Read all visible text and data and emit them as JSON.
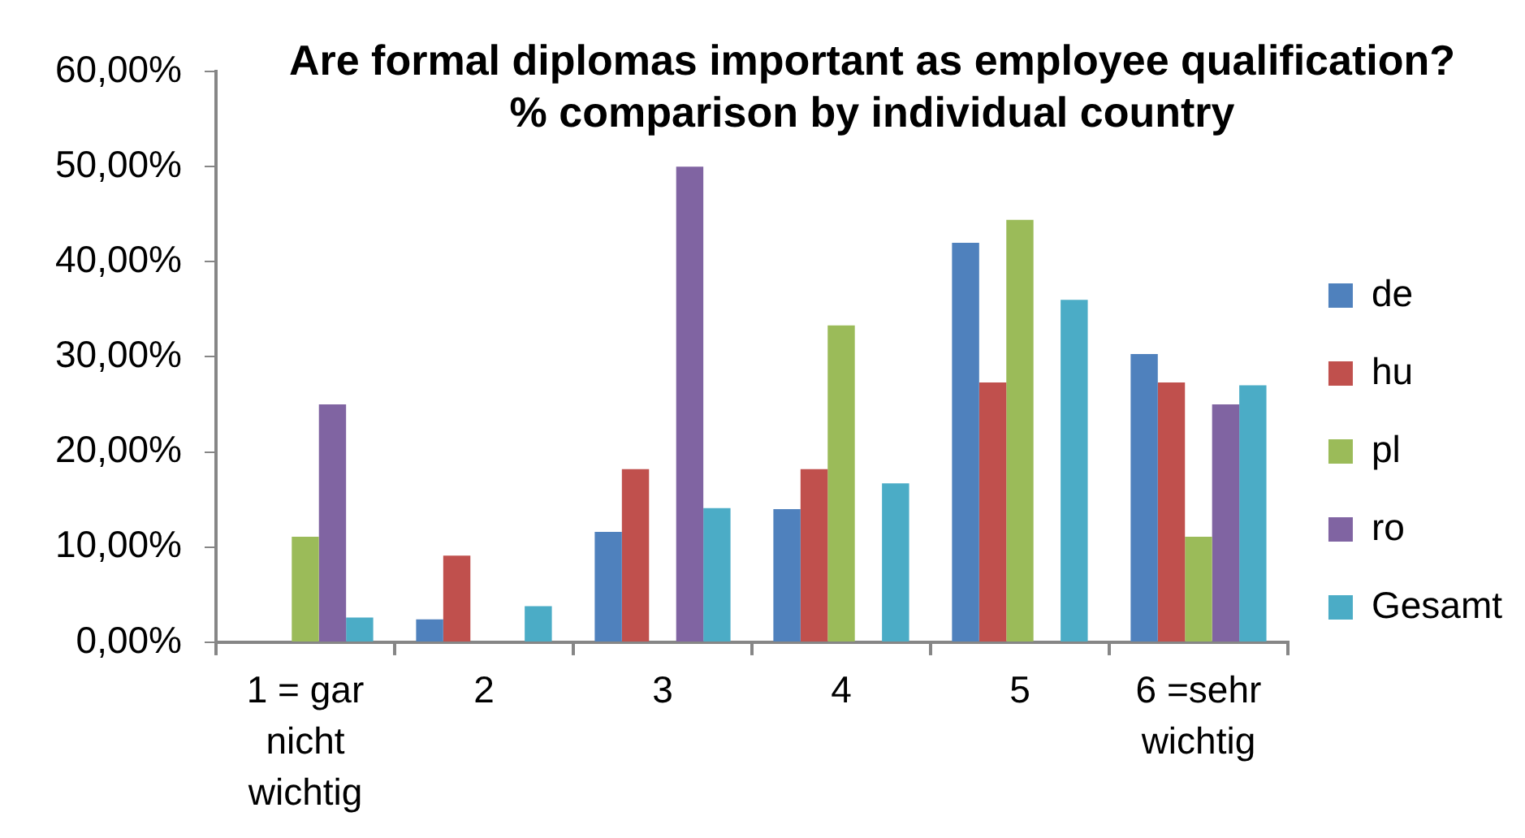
{
  "chart_data": {
    "type": "bar",
    "title": "Are formal diplomas important as employee qualification?\n% comparison by individual country",
    "categories": [
      "1 = gar nicht wichtig",
      "2",
      "3",
      "4",
      "5",
      "6 =sehr wichtig"
    ],
    "series": [
      {
        "name": "de",
        "color": "#4f81bd",
        "values": [
          0,
          2.4,
          11.6,
          14.0,
          42.0,
          30.3
        ]
      },
      {
        "name": "hu",
        "color": "#c0504d",
        "values": [
          0,
          9.1,
          18.2,
          18.2,
          27.3,
          27.3
        ]
      },
      {
        "name": "pl",
        "color": "#9bbb59",
        "values": [
          11.1,
          0,
          0,
          33.3,
          44.4,
          11.1
        ]
      },
      {
        "name": "ro",
        "color": "#8064a2",
        "values": [
          25.0,
          0,
          50.0,
          0,
          0,
          25.0
        ]
      },
      {
        "name": "Gesamt",
        "color": "#4bacc6",
        "values": [
          2.6,
          3.8,
          14.1,
          16.7,
          36.0,
          27.0
        ]
      }
    ],
    "ylim": [
      0,
      60
    ],
    "yticks": [
      {
        "value": 0,
        "label": "0,00%"
      },
      {
        "value": 10,
        "label": "10,00%"
      },
      {
        "value": 20,
        "label": "20,00%"
      },
      {
        "value": 30,
        "label": "30,00%"
      },
      {
        "value": 40,
        "label": "40,00%"
      },
      {
        "value": 50,
        "label": "50,00%"
      },
      {
        "value": 60,
        "label": "60,00%"
      }
    ],
    "legend": "right"
  }
}
